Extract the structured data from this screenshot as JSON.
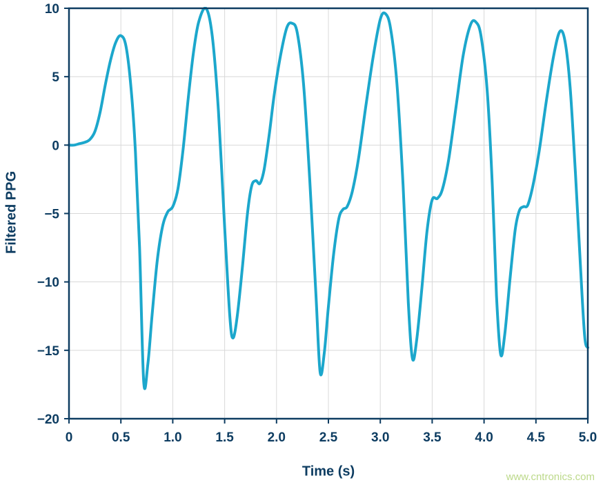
{
  "colors": {
    "axis": "#0d3c61",
    "grid": "#d8d8d8",
    "line": "#1ca7cc",
    "watermark": "#bcd98a",
    "background": "#ffffff"
  },
  "watermark": {
    "text": "www.cntronics.com"
  },
  "chart_data": {
    "type": "line",
    "title": "",
    "xlabel": "Time (s)",
    "ylabel": "Filtered PPG",
    "xlim": [
      0,
      5
    ],
    "ylim": [
      -20,
      10
    ],
    "grid": true,
    "legend_position": "none",
    "xticks": [
      0,
      0.5,
      1,
      1.5,
      2,
      2.5,
      3,
      3.5,
      4,
      4.5,
      5
    ],
    "xtick_labels": [
      "0",
      "0.5",
      "1.0",
      "1.5",
      "2.0",
      "2.5",
      "3.0",
      "3.5",
      "4.0",
      "4.5",
      "5.0"
    ],
    "yticks": [
      -20,
      -15,
      -10,
      -5,
      0,
      5,
      10
    ],
    "ytick_labels": [
      "−20",
      "−15",
      "−10",
      "−5",
      "0",
      "5",
      "10"
    ],
    "series": [
      {
        "name": "Filtered PPG",
        "color": "#1ca7cc",
        "x": [
          0.0,
          0.05,
          0.1,
          0.15,
          0.2,
          0.25,
          0.3,
          0.35,
          0.4,
          0.45,
          0.5,
          0.55,
          0.6,
          0.64,
          0.68,
          0.72,
          0.76,
          0.8,
          0.85,
          0.9,
          0.95,
          1.0,
          1.05,
          1.1,
          1.15,
          1.2,
          1.25,
          1.32,
          1.38,
          1.44,
          1.5,
          1.55,
          1.58,
          1.62,
          1.67,
          1.72,
          1.76,
          1.8,
          1.84,
          1.88,
          1.93,
          1.98,
          2.04,
          2.1,
          2.15,
          2.2,
          2.26,
          2.32,
          2.38,
          2.42,
          2.46,
          2.5,
          2.55,
          2.6,
          2.64,
          2.68,
          2.73,
          2.79,
          2.86,
          2.93,
          3.0,
          3.05,
          3.1,
          3.16,
          3.22,
          3.27,
          3.31,
          3.35,
          3.4,
          3.45,
          3.5,
          3.55,
          3.6,
          3.66,
          3.73,
          3.8,
          3.87,
          3.92,
          3.97,
          4.03,
          4.08,
          4.12,
          4.16,
          4.2,
          4.25,
          4.3,
          4.34,
          4.38,
          4.42,
          4.47,
          4.53,
          4.6,
          4.67,
          4.73,
          4.78,
          4.83,
          4.88,
          4.93,
          4.97,
          5.0
        ],
        "y": [
          0.0,
          0.0,
          0.1,
          0.2,
          0.4,
          1.0,
          2.4,
          4.4,
          6.2,
          7.5,
          8.0,
          7.2,
          4.0,
          -0.5,
          -7.5,
          -17.3,
          -16.0,
          -12.5,
          -8.5,
          -6.0,
          -4.9,
          -4.5,
          -3.2,
          -0.3,
          3.5,
          6.8,
          9.0,
          10.0,
          8.0,
          2.5,
          -6.0,
          -12.5,
          -14.1,
          -12.6,
          -9.0,
          -5.0,
          -3.0,
          -2.6,
          -2.8,
          -1.8,
          0.8,
          3.8,
          6.6,
          8.6,
          8.9,
          8.2,
          4.5,
          -2.5,
          -11.0,
          -16.6,
          -15.2,
          -11.8,
          -8.0,
          -5.4,
          -4.7,
          -4.5,
          -3.4,
          -1.0,
          2.8,
          6.4,
          9.2,
          9.6,
          8.5,
          4.5,
          -3.0,
          -11.5,
          -15.6,
          -14.3,
          -10.5,
          -6.3,
          -4.0,
          -3.9,
          -3.2,
          -1.0,
          2.8,
          6.6,
          8.8,
          9.0,
          8.0,
          4.0,
          -3.0,
          -11.0,
          -15.3,
          -13.8,
          -9.8,
          -6.2,
          -4.8,
          -4.5,
          -4.4,
          -3.0,
          -0.5,
          3.2,
          6.5,
          8.3,
          7.6,
          4.2,
          -2.0,
          -9.0,
          -14.0,
          -14.8
        ]
      }
    ]
  }
}
